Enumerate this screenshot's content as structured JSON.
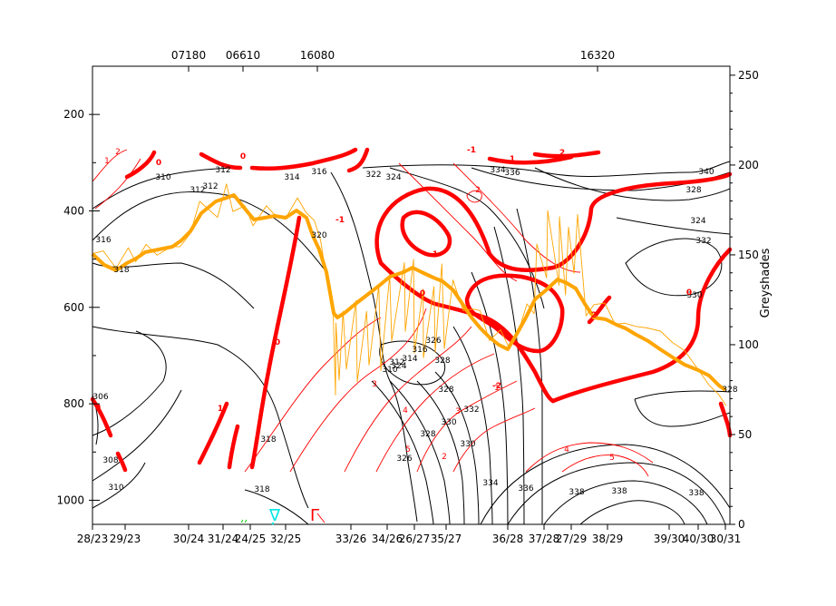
{
  "chart_data": {
    "type": "line",
    "title": "",
    "ylabel_right": "Greyshades",
    "left_axis": {
      "ticks": [
        200,
        400,
        600,
        800,
        1000
      ],
      "ylim": [
        1050,
        100
      ],
      "inverted": true
    },
    "right_axis": {
      "ticks": [
        0,
        50,
        100,
        150,
        200,
        250
      ],
      "ylim": [
        0,
        255
      ]
    },
    "top_labels": [
      "07180",
      "06610",
      "16080",
      "16320"
    ],
    "bottom_labels": [
      "28/23",
      "29/23",
      "30/24",
      "31/24",
      "24/25",
      "32/25",
      "33/26",
      "34/26",
      "26/27",
      "35/27",
      "36/28",
      "37/28",
      "27/29",
      "38/29",
      "39/30",
      "40/30",
      "30/31"
    ],
    "black_contour_values": [
      "306",
      "308",
      "310",
      "310",
      "312",
      "312",
      "312",
      "314",
      "316",
      "316",
      "318",
      "318",
      "318",
      "320",
      "322",
      "324",
      "324",
      "326",
      "328",
      "328",
      "330",
      "330",
      "332",
      "334",
      "334",
      "336",
      "336",
      "338",
      "338",
      "338",
      "340",
      "328",
      "324",
      "332",
      "330",
      "328",
      "326",
      "328",
      "316",
      "314",
      "312",
      "310"
    ],
    "red_thin_values": [
      "1",
      "2",
      "3",
      "4",
      "5",
      "2",
      "3",
      "2",
      "1",
      "4",
      "5"
    ],
    "red_thick_values": [
      "0",
      "0",
      "1",
      "-1",
      "2",
      "-2",
      "1",
      "2",
      "0",
      "0",
      "-1",
      "0",
      "1",
      "0"
    ],
    "symbols": [
      "∇",
      "Γ"
    ],
    "colors": {
      "black_contours": "#000000",
      "red_contours": "#ff0000",
      "orange_line": "#ffa500",
      "symbol_cyan": "#00e5e5",
      "symbol_red": "#ff0000",
      "symbol_green": "#00cc00"
    }
  }
}
